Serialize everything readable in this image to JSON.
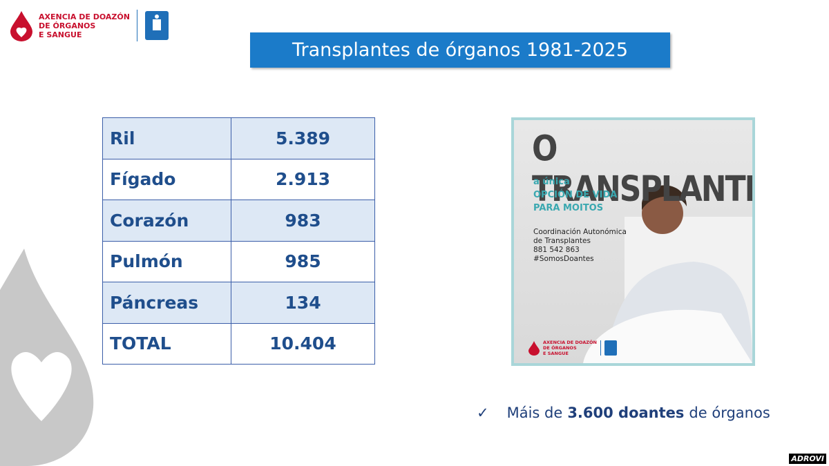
{
  "header": {
    "logo_lines": [
      "AXENCIA DE DOAZÓN",
      "DE ÓRGANOS",
      "E SANGUE"
    ]
  },
  "title": "Transplantes de órganos 1981-2025",
  "table": {
    "rows": [
      [
        "Ril",
        "5.389"
      ],
      [
        "Fígado",
        "2.913"
      ],
      [
        "Corazón",
        "983"
      ],
      [
        "Pulmón",
        "985"
      ],
      [
        "Páncreas",
        "134"
      ],
      [
        "TOTAL",
        "10.404"
      ]
    ]
  },
  "poster": {
    "headline": "O TRANSPLANTE",
    "tagline": [
      "a única",
      "OPCIÓN DE VIDA",
      "PARA MOITOS"
    ],
    "contact": [
      "Coordinación Autonómica",
      "de Transplantes",
      "881 542 863",
      "#SomosDoantes"
    ],
    "logo_lines": [
      "AXENCIA DE DOAZÓN",
      "DE ÓRGANOS",
      "E SANGUE"
    ]
  },
  "bullet": {
    "mark": "✓",
    "parts": [
      "Máis de",
      "3.600 doantes",
      "de órganos"
    ]
  },
  "watermark": "ADROVI"
}
